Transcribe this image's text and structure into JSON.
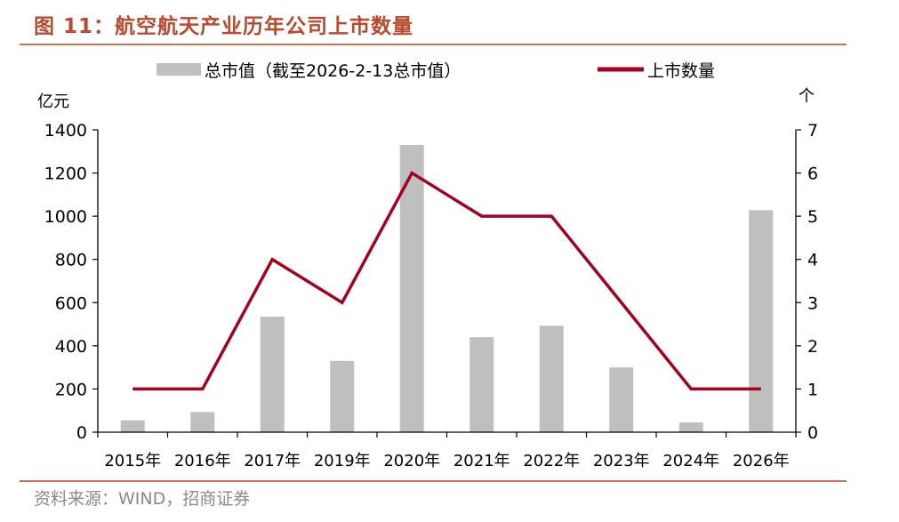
{
  "figure": {
    "title": "图 11：航空航天产业历年公司上市数量",
    "source": "资料来源：WIND，招商证券"
  },
  "chart_data": {
    "type": "bar",
    "categories": [
      "2015年",
      "2016年",
      "2017年",
      "2019年",
      "2020年",
      "2021年",
      "2022年",
      "2023年",
      "2024年",
      "2026年"
    ],
    "series": [
      {
        "name": "总市值（截至2026-2-13总市值）",
        "type": "bar",
        "axis": "left",
        "color": "#bfbfbf",
        "values": [
          55,
          93,
          535,
          330,
          1330,
          440,
          493,
          300,
          45,
          1028
        ]
      },
      {
        "name": "上市数量",
        "type": "line",
        "axis": "right",
        "color": "#a50021",
        "values": [
          1,
          1,
          4,
          3,
          6,
          5,
          5,
          3,
          1,
          1
        ]
      }
    ],
    "ylabel": "亿元",
    "y2label": "个",
    "ylim": [
      0,
      1400
    ],
    "yticks": [
      0,
      200,
      400,
      600,
      800,
      1000,
      1200,
      1400
    ],
    "y2lim": [
      0,
      7
    ],
    "y2ticks": [
      0,
      1,
      2,
      3,
      4,
      5,
      6,
      7
    ],
    "legend": "top",
    "grid": false
  }
}
